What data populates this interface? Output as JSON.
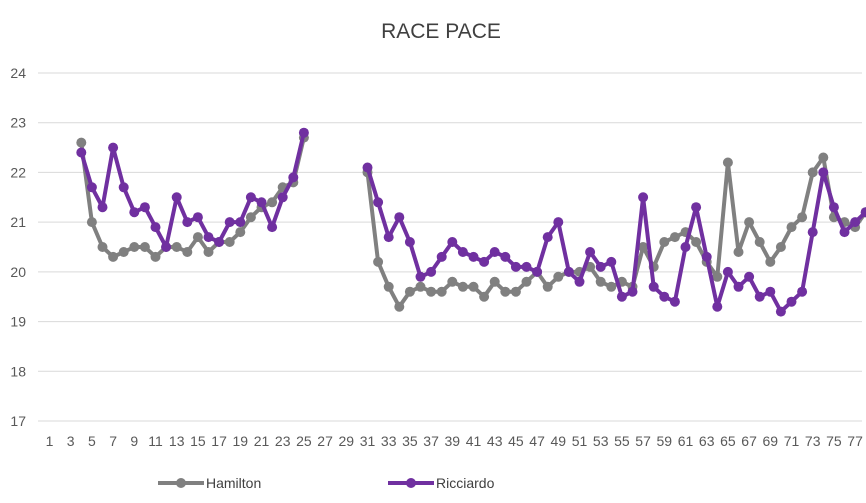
{
  "chart_data": {
    "type": "line",
    "title": "RACE PACE",
    "xlabel": "",
    "ylabel": "",
    "ylim": [
      17,
      24
    ],
    "yticks": [
      17,
      18,
      19,
      20,
      21,
      22,
      23,
      24
    ],
    "xlim": [
      1,
      78
    ],
    "xticks": [
      1,
      3,
      5,
      7,
      9,
      11,
      13,
      15,
      17,
      19,
      21,
      23,
      25,
      27,
      29,
      31,
      33,
      35,
      37,
      39,
      41,
      43,
      45,
      47,
      49,
      51,
      53,
      55,
      57,
      59,
      61,
      63,
      65,
      67,
      69,
      71,
      73,
      75,
      77
    ],
    "grid": "horizontal",
    "legend_position": "bottom",
    "series": [
      {
        "name": "Hamilton",
        "color": "#808080",
        "x": [
          4,
          5,
          6,
          7,
          8,
          9,
          10,
          11,
          12,
          13,
          14,
          15,
          16,
          17,
          18,
          19,
          20,
          21,
          22,
          23,
          24,
          25,
          31,
          32,
          33,
          34,
          35,
          36,
          37,
          38,
          39,
          40,
          41,
          42,
          43,
          44,
          45,
          46,
          47,
          48,
          49,
          50,
          51,
          52,
          53,
          54,
          55,
          56,
          57,
          58,
          59,
          60,
          61,
          62,
          63,
          64,
          65,
          66,
          67,
          68,
          69,
          70,
          71,
          72,
          73,
          74,
          75,
          76,
          77,
          78
        ],
        "values": [
          22.6,
          21.0,
          20.5,
          20.3,
          20.4,
          20.5,
          20.5,
          20.3,
          20.5,
          20.5,
          20.4,
          20.7,
          20.4,
          20.6,
          20.6,
          20.8,
          21.1,
          21.3,
          21.4,
          21.7,
          21.8,
          22.7,
          22.0,
          20.2,
          19.7,
          19.3,
          19.6,
          19.7,
          19.6,
          19.6,
          19.8,
          19.7,
          19.7,
          19.5,
          19.8,
          19.6,
          19.6,
          19.8,
          20.0,
          19.7,
          19.9,
          20.0,
          20.0,
          20.1,
          19.8,
          19.7,
          19.8,
          19.7,
          20.5,
          20.1,
          20.6,
          20.7,
          20.8,
          20.6,
          20.2,
          19.9,
          22.2,
          20.4,
          21.0,
          20.6,
          20.2,
          20.5,
          20.9,
          21.1,
          22.0,
          22.3,
          21.1,
          21.0,
          20.9,
          21.2
        ]
      },
      {
        "name": "Ricciardo",
        "color": "#7030a0",
        "x": [
          4,
          5,
          6,
          7,
          8,
          9,
          10,
          11,
          12,
          13,
          14,
          15,
          16,
          17,
          18,
          19,
          20,
          21,
          22,
          23,
          24,
          25,
          31,
          32,
          33,
          34,
          35,
          36,
          37,
          38,
          39,
          40,
          41,
          42,
          43,
          44,
          45,
          46,
          47,
          48,
          49,
          50,
          51,
          52,
          53,
          54,
          55,
          56,
          57,
          58,
          59,
          60,
          61,
          62,
          63,
          64,
          65,
          66,
          67,
          68,
          69,
          70,
          71,
          72,
          73,
          74,
          75,
          76,
          77,
          78
        ],
        "values": [
          22.4,
          21.7,
          21.3,
          22.5,
          21.7,
          21.2,
          21.3,
          20.9,
          20.5,
          21.5,
          21.0,
          21.1,
          20.7,
          20.6,
          21.0,
          21.0,
          21.5,
          21.4,
          20.9,
          21.5,
          21.9,
          22.8,
          22.1,
          21.4,
          20.7,
          21.1,
          20.6,
          19.9,
          20.0,
          20.3,
          20.6,
          20.4,
          20.3,
          20.2,
          20.4,
          20.3,
          20.1,
          20.1,
          20.0,
          20.7,
          21.0,
          20.0,
          19.8,
          20.4,
          20.1,
          20.2,
          19.5,
          19.6,
          21.5,
          19.7,
          19.5,
          19.4,
          20.5,
          21.3,
          20.3,
          19.3,
          20.0,
          19.7,
          19.9,
          19.5,
          19.6,
          19.2,
          19.4,
          19.6,
          20.8,
          22.0,
          21.3,
          20.8,
          21.0,
          21.2
        ]
      }
    ]
  }
}
